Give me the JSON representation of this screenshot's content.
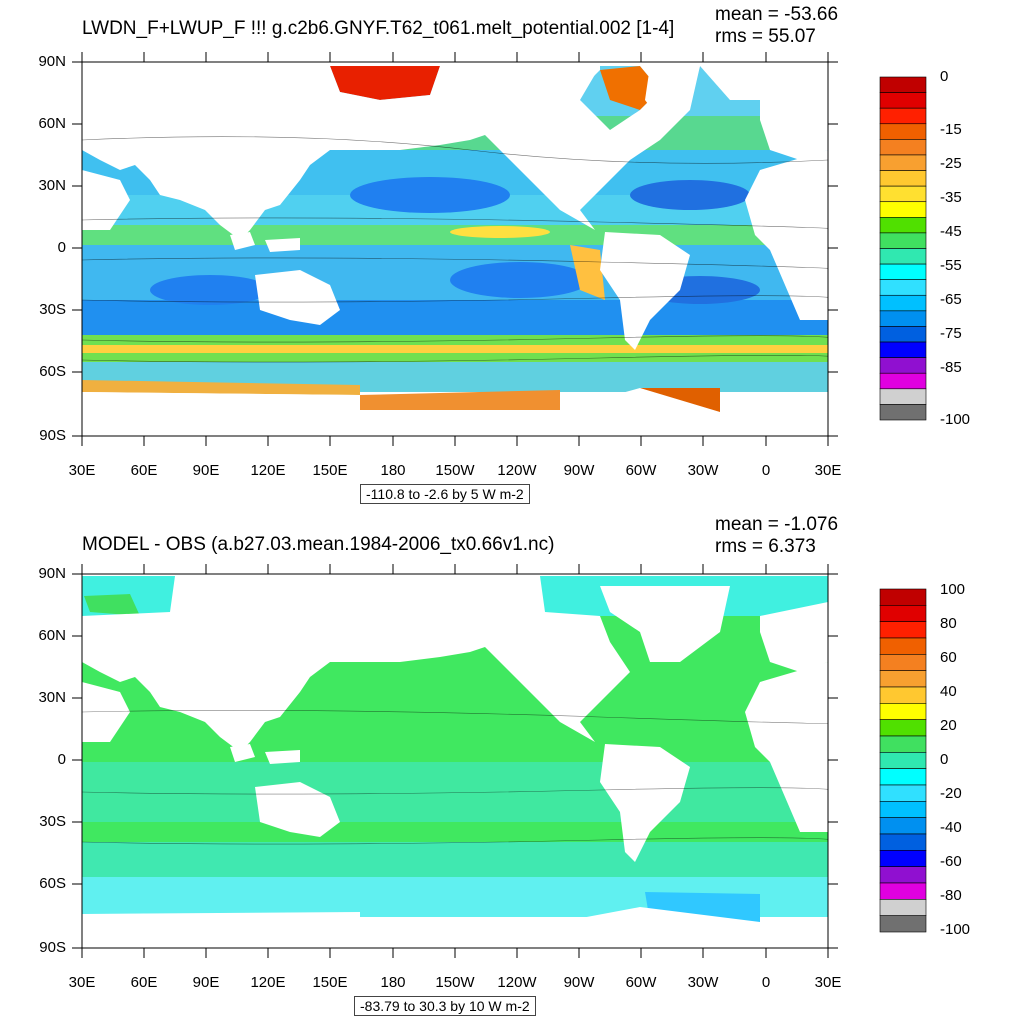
{
  "panels": [
    {
      "title": "LWDN_F+LWUP_F !!!  g.c2b6.GNYF.T62_t061.melt_potential.002 [1-4]",
      "mean": "mean = -53.66",
      "rms": "rms = 55.07",
      "range_label": "-110.8 to -2.6 by 5 W m-2",
      "lat_labels": [
        "90N",
        "60N",
        "30N",
        "0",
        "30S",
        "60S",
        "90S"
      ],
      "lon_labels": [
        "30E",
        "60E",
        "90E",
        "120E",
        "150E",
        "180",
        "150W",
        "120W",
        "90W",
        "60W",
        "30W",
        "0",
        "30E"
      ],
      "colorbar": {
        "colors": [
          "#c00000",
          "#e00000",
          "#ff2000",
          "#f06000",
          "#f48020",
          "#f8a030",
          "#ffc830",
          "#ffe030",
          "#ffff00",
          "#50e000",
          "#40e060",
          "#30e8b0",
          "#00ffff",
          "#30e0ff",
          "#00c0ff",
          "#0090f0",
          "#0060e0",
          "#0000ff",
          "#9010d0",
          "#e000e0",
          "#d0d0d0",
          "#707070"
        ],
        "labels": [
          "0",
          "-15",
          "-25",
          "-35",
          "-45",
          "-55",
          "-65",
          "-75",
          "-85",
          "-100"
        ]
      }
    },
    {
      "title": "MODEL - OBS (a.b27.03.mean.1984-2006_tx0.66v1.nc)",
      "mean": "mean = -1.076",
      "rms": "rms = 6.373",
      "range_label": "-83.79 to 30.3 by 10 W m-2",
      "lat_labels": [
        "90N",
        "60N",
        "30N",
        "0",
        "30S",
        "60S",
        "90S"
      ],
      "lon_labels": [
        "30E",
        "60E",
        "90E",
        "120E",
        "150E",
        "180",
        "150W",
        "120W",
        "90W",
        "60W",
        "30W",
        "0",
        "30E"
      ],
      "colorbar": {
        "colors": [
          "#c00000",
          "#e00000",
          "#ff2000",
          "#f06000",
          "#f48020",
          "#f8a030",
          "#ffc830",
          "#ffff00",
          "#50e000",
          "#40e060",
          "#30e8b0",
          "#00ffff",
          "#30e0ff",
          "#00c0ff",
          "#0090f0",
          "#0060e0",
          "#0000ff",
          "#9010d0",
          "#e000e0",
          "#d0d0d0",
          "#707070"
        ],
        "labels": [
          "100",
          "80",
          "60",
          "40",
          "20",
          "0",
          "-20",
          "-40",
          "-60",
          "-80",
          "-100"
        ]
      }
    }
  ]
}
